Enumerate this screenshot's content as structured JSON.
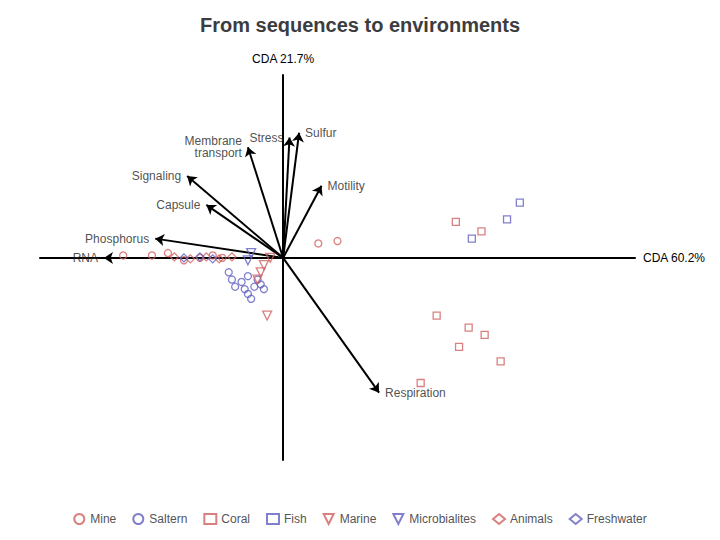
{
  "chart_data": {
    "type": "scatter",
    "title": "From sequences to environments",
    "x_label": "CDA 60.2%",
    "y_label": "CDA 21.7%",
    "xlim": [
      -3.8,
      5.5
    ],
    "ylim": [
      -4.2,
      3.8
    ],
    "tick_labels": false,
    "grid": false,
    "legend": "bottom",
    "series": [
      {
        "name": "Mine",
        "color": "#d06060",
        "marker": "circle",
        "values": [
          [
            -2.5,
            0.05
          ],
          [
            -2.05,
            0.05
          ],
          [
            -1.8,
            0.1
          ],
          [
            -1.55,
            -0.05
          ],
          [
            -1.3,
            0.0
          ],
          [
            -1.1,
            0.05
          ],
          [
            -0.95,
            0.0
          ],
          [
            0.55,
            0.3
          ],
          [
            0.85,
            0.35
          ]
        ]
      },
      {
        "name": "Saltern",
        "color": "#6060c0",
        "marker": "circle",
        "values": [
          [
            -0.85,
            -0.3
          ],
          [
            -0.8,
            -0.45
          ],
          [
            -0.75,
            -0.6
          ],
          [
            -0.65,
            -0.5
          ],
          [
            -0.6,
            -0.65
          ],
          [
            -0.55,
            -0.75
          ],
          [
            -0.5,
            -0.85
          ],
          [
            -0.45,
            -0.6
          ],
          [
            -0.4,
            -0.45
          ],
          [
            -0.35,
            -0.55
          ],
          [
            -0.3,
            -0.65
          ],
          [
            -0.55,
            -0.38
          ]
        ]
      },
      {
        "name": "Coral",
        "color": "#d06060",
        "marker": "square",
        "values": [
          [
            2.7,
            0.75
          ],
          [
            3.1,
            0.55
          ],
          [
            2.4,
            -1.2
          ],
          [
            2.9,
            -1.45
          ],
          [
            3.15,
            -1.6
          ],
          [
            2.75,
            -1.85
          ],
          [
            3.4,
            -2.15
          ],
          [
            2.15,
            -2.6
          ]
        ]
      },
      {
        "name": "Fish",
        "color": "#6060c0",
        "marker": "square",
        "values": [
          [
            3.7,
            1.15
          ],
          [
            3.5,
            0.8
          ],
          [
            2.95,
            0.4
          ]
        ]
      },
      {
        "name": "Marine",
        "color": "#d06060",
        "marker": "triangle_down",
        "values": [
          [
            -0.2,
            0.0
          ],
          [
            -0.3,
            -0.15
          ],
          [
            -0.35,
            -0.3
          ],
          [
            -0.4,
            -0.45
          ],
          [
            -0.25,
            -1.2
          ]
        ]
      },
      {
        "name": "Microbialites",
        "color": "#6060c0",
        "marker": "triangle_down",
        "values": [
          [
            -0.5,
            0.1
          ],
          [
            -0.55,
            -0.05
          ]
        ]
      },
      {
        "name": "Animals",
        "color": "#d06060",
        "marker": "diamond",
        "values": [
          [
            -1.7,
            0.02
          ],
          [
            -1.45,
            -0.02
          ],
          [
            -1.2,
            0.02
          ],
          [
            -1.0,
            -0.02
          ],
          [
            -0.8,
            0.02
          ]
        ]
      },
      {
        "name": "Freshwater",
        "color": "#6060c0",
        "marker": "diamond",
        "values": [
          [
            -1.55,
            0.0
          ],
          [
            -1.3,
            0.02
          ],
          [
            -1.1,
            -0.02
          ]
        ]
      }
    ],
    "annotations": [
      {
        "text": "Stress",
        "x": 0.1,
        "y": 2.5
      },
      {
        "text": "Membrane\ntransport",
        "x": -0.55,
        "y": 2.3
      },
      {
        "text": "Signaling",
        "x": -1.5,
        "y": 1.7
      },
      {
        "text": "Capsule",
        "x": -1.2,
        "y": 1.1
      },
      {
        "text": "Motility",
        "x": 0.6,
        "y": 1.5
      },
      {
        "text": "Phosphorus",
        "x": -2.0,
        "y": 0.4
      },
      {
        "text": "RNA",
        "x": -2.8,
        "y": 0.0
      },
      {
        "text": "Respiration",
        "x": 1.5,
        "y": -2.8
      },
      {
        "text": "Sulfur",
        "x": 0.25,
        "y": 2.6
      }
    ]
  }
}
